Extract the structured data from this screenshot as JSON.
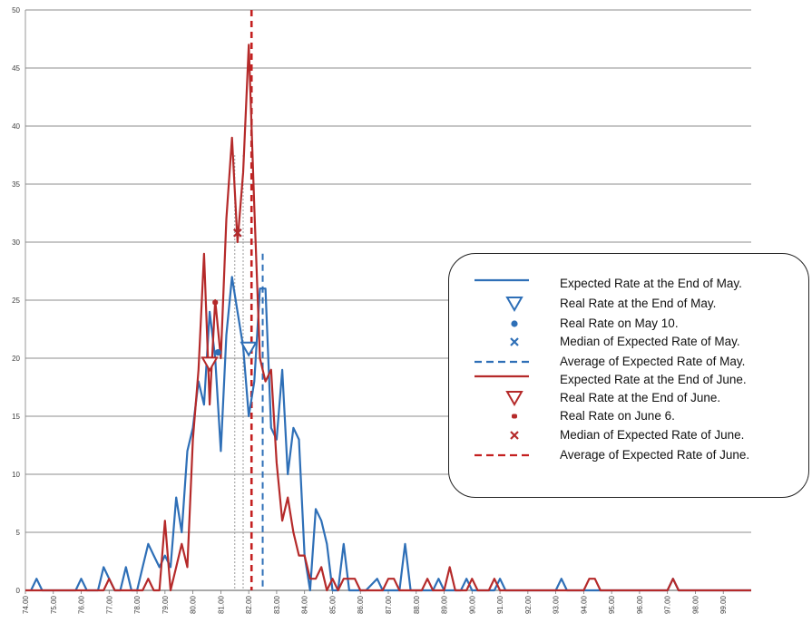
{
  "chart_data": {
    "type": "line",
    "title": "",
    "xlabel": "",
    "ylabel": "",
    "x_tick_labels": [
      "74.00",
      "75.00",
      "76.00",
      "77.00",
      "78.00",
      "79.00",
      "80.00",
      "81.00",
      "82.00",
      "83.00",
      "84.00",
      "85.00",
      "86.00",
      "87.00",
      "88.00",
      "89.00",
      "90.00",
      "91.00",
      "92.00",
      "93.00",
      "94.00",
      "95.00",
      "96.00",
      "97.00",
      "98.00",
      "99.00"
    ],
    "y_tick_labels": [
      "0",
      "5",
      "10",
      "15",
      "20",
      "25",
      "30",
      "35",
      "40",
      "45",
      "50"
    ],
    "xlim": [
      74.0,
      100.0
    ],
    "ylim": [
      0,
      50
    ],
    "grid": "horizontal",
    "legend_position": "right",
    "series": [
      {
        "name": "Expected Rate at the End of May.",
        "color": "#2e6fb7",
        "style": "solid",
        "points": [
          [
            74.2,
            0
          ],
          [
            74.4,
            1
          ],
          [
            74.6,
            0
          ],
          [
            75.0,
            0
          ],
          [
            75.8,
            0
          ],
          [
            76.0,
            1
          ],
          [
            76.2,
            0
          ],
          [
            76.6,
            0
          ],
          [
            76.8,
            2
          ],
          [
            77.0,
            1
          ],
          [
            77.2,
            0
          ],
          [
            77.4,
            0
          ],
          [
            77.6,
            2
          ],
          [
            77.8,
            0
          ],
          [
            78.0,
            0
          ],
          [
            78.2,
            2
          ],
          [
            78.4,
            4
          ],
          [
            78.6,
            3
          ],
          [
            78.8,
            2
          ],
          [
            79.0,
            3
          ],
          [
            79.2,
            2
          ],
          [
            79.4,
            8
          ],
          [
            79.6,
            5
          ],
          [
            79.8,
            12
          ],
          [
            80.0,
            14
          ],
          [
            80.2,
            18
          ],
          [
            80.4,
            16
          ],
          [
            80.6,
            24
          ],
          [
            80.8,
            20
          ],
          [
            81.0,
            12
          ],
          [
            81.2,
            22
          ],
          [
            81.4,
            27
          ],
          [
            81.6,
            24
          ],
          [
            81.8,
            21
          ],
          [
            82.0,
            15
          ],
          [
            82.2,
            18
          ],
          [
            82.4,
            26
          ],
          [
            82.6,
            26
          ],
          [
            82.8,
            14
          ],
          [
            83.0,
            13
          ],
          [
            83.2,
            19
          ],
          [
            83.4,
            10
          ],
          [
            83.6,
            14
          ],
          [
            83.8,
            13
          ],
          [
            84.0,
            3
          ],
          [
            84.2,
            0
          ],
          [
            84.4,
            7
          ],
          [
            84.6,
            6
          ],
          [
            84.8,
            4
          ],
          [
            85.0,
            0
          ],
          [
            85.2,
            0
          ],
          [
            85.4,
            4
          ],
          [
            85.6,
            0
          ],
          [
            86.0,
            0
          ],
          [
            86.2,
            0
          ],
          [
            86.6,
            1
          ],
          [
            86.8,
            0
          ],
          [
            87.4,
            0
          ],
          [
            87.6,
            4
          ],
          [
            87.8,
            0
          ],
          [
            88.6,
            0
          ],
          [
            88.8,
            1
          ],
          [
            89.0,
            0
          ],
          [
            89.6,
            0
          ],
          [
            89.8,
            1
          ],
          [
            90.0,
            0
          ],
          [
            90.8,
            0
          ],
          [
            91.0,
            1
          ],
          [
            91.2,
            0
          ],
          [
            93.0,
            0
          ],
          [
            93.2,
            1
          ],
          [
            93.4,
            0
          ],
          [
            97.0,
            0
          ],
          [
            97.2,
            1
          ],
          [
            97.4,
            0
          ],
          [
            100.0,
            0
          ]
        ]
      },
      {
        "name": "Expected Rate at the End of June.",
        "color": "#b52a2a",
        "style": "solid",
        "points": [
          [
            74.0,
            0
          ],
          [
            76.8,
            0
          ],
          [
            77.0,
            1
          ],
          [
            77.2,
            0
          ],
          [
            78.2,
            0
          ],
          [
            78.4,
            1
          ],
          [
            78.6,
            0
          ],
          [
            78.8,
            0
          ],
          [
            79.0,
            6
          ],
          [
            79.2,
            0
          ],
          [
            79.4,
            2
          ],
          [
            79.6,
            4
          ],
          [
            79.8,
            2
          ],
          [
            80.0,
            13
          ],
          [
            80.2,
            19
          ],
          [
            80.4,
            29
          ],
          [
            80.6,
            16
          ],
          [
            80.8,
            25
          ],
          [
            81.0,
            20
          ],
          [
            81.2,
            32
          ],
          [
            81.4,
            39
          ],
          [
            81.6,
            30
          ],
          [
            81.8,
            36
          ],
          [
            82.0,
            47
          ],
          [
            82.2,
            33
          ],
          [
            82.4,
            20
          ],
          [
            82.6,
            18
          ],
          [
            82.8,
            19
          ],
          [
            83.0,
            11
          ],
          [
            83.2,
            6
          ],
          [
            83.4,
            8
          ],
          [
            83.6,
            5
          ],
          [
            83.8,
            3
          ],
          [
            84.0,
            3
          ],
          [
            84.2,
            1
          ],
          [
            84.4,
            1
          ],
          [
            84.6,
            2
          ],
          [
            84.8,
            0
          ],
          [
            85.0,
            1
          ],
          [
            85.2,
            0
          ],
          [
            85.4,
            1
          ],
          [
            85.6,
            1
          ],
          [
            85.8,
            1
          ],
          [
            86.0,
            0
          ],
          [
            86.8,
            0
          ],
          [
            87.0,
            1
          ],
          [
            87.2,
            1
          ],
          [
            87.4,
            0
          ],
          [
            88.2,
            0
          ],
          [
            88.4,
            1
          ],
          [
            88.6,
            0
          ],
          [
            89.0,
            0
          ],
          [
            89.2,
            2
          ],
          [
            89.4,
            0
          ],
          [
            89.8,
            0
          ],
          [
            90.0,
            1
          ],
          [
            90.2,
            0
          ],
          [
            90.6,
            0
          ],
          [
            90.8,
            1
          ],
          [
            91.0,
            0
          ],
          [
            94.0,
            0
          ],
          [
            94.2,
            1
          ],
          [
            94.4,
            1
          ],
          [
            94.6,
            0
          ],
          [
            97.0,
            0
          ],
          [
            97.2,
            1
          ],
          [
            97.4,
            0
          ],
          [
            100.0,
            0
          ]
        ]
      }
    ],
    "markers": [
      {
        "name": "Real Rate at the End of May.",
        "shape": "triangle-down-open",
        "color": "#2e6fb7",
        "x": 82.0,
        "y": 20.8
      },
      {
        "name": "Real Rate on May 10.",
        "shape": "dot",
        "color": "#2e6fb7",
        "x": 80.9,
        "y": 20.5
      },
      {
        "name": "Median of Expected Rate of May.",
        "shape": "x",
        "color": "#2e6fb7",
        "x": 81.6,
        "y": 30.8
      },
      {
        "name": "Real Rate at the End of June.",
        "shape": "triangle-down-open",
        "color": "#b52a2a",
        "x": 80.6,
        "y": 19.5
      },
      {
        "name": "Real Rate on June 6.",
        "shape": "dot-small",
        "color": "#b52a2a",
        "x": 80.8,
        "y": 24.8
      },
      {
        "name": "Median of Expected Rate of June.",
        "shape": "x",
        "color": "#b52a2a",
        "x": 81.6,
        "y": 30.8
      }
    ],
    "vertical_lines": [
      {
        "name": "Average of Expected Rate of May.",
        "color": "#2e6fb7",
        "x": 82.5,
        "y_top": 29
      },
      {
        "name": "Average of Expected Rate of June.",
        "color": "#c42020",
        "x": 82.1,
        "y_top": 50
      },
      {
        "name": "median-guide",
        "color": "#9a9a9a",
        "x": 81.5,
        "y_top": 37.5
      },
      {
        "name": "median-guide",
        "color": "#9a9a9a",
        "x": 81.8,
        "y_top": 37.5
      }
    ],
    "legend": [
      {
        "label": "Expected Rate at the End of May.",
        "symbol": "line-solid",
        "color": "#2e6fb7"
      },
      {
        "label": "Real Rate at the End of May.",
        "symbol": "triangle-down-open",
        "color": "#2e6fb7"
      },
      {
        "label": "Real Rate on May 10.",
        "symbol": "dot",
        "color": "#2e6fb7"
      },
      {
        "label": "Median of Expected Rate of May.",
        "symbol": "x",
        "color": "#2e6fb7"
      },
      {
        "label": "Average of Expected Rate of May.",
        "symbol": "line-dashed",
        "color": "#2e6fb7"
      },
      {
        "label": "Expected Rate at the End of June.",
        "symbol": "line-solid",
        "color": "#b52a2a"
      },
      {
        "label": "Real Rate at the End of June.",
        "symbol": "triangle-down-open",
        "color": "#b52a2a"
      },
      {
        "label": "Real Rate on June 6.",
        "symbol": "dot-small",
        "color": "#b52a2a"
      },
      {
        "label": "Median of Expected Rate of June.",
        "symbol": "x",
        "color": "#b52a2a"
      },
      {
        "label": "Average of Expected Rate of June.",
        "symbol": "line-dashed",
        "color": "#c42020"
      }
    ]
  }
}
